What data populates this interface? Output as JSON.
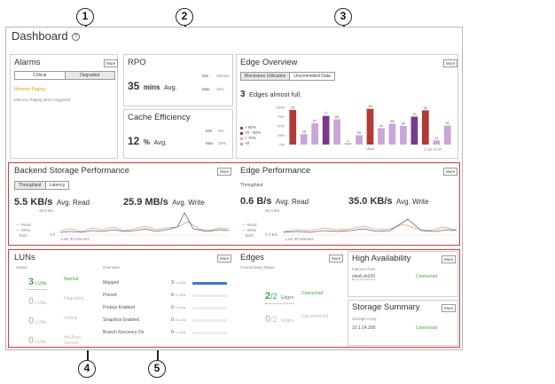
{
  "callouts": [
    "1",
    "2",
    "3",
    "4",
    "5"
  ],
  "dashboard": {
    "title": "Dashboard",
    "help_icon": "?"
  },
  "alarms": {
    "title": "Alarms",
    "more": "More",
    "tabs": [
      "Critical",
      "Degraded"
    ],
    "active_tab": "Degraded",
    "item_title": "Memory Paging",
    "item_desc": "Memory Paging alarm triggered.",
    "item_color": "#e89a1c"
  },
  "rpo": {
    "title": "RPO",
    "value": "35",
    "unit": "mins",
    "suffix": "Avg.",
    "min_label": "Min",
    "min_value": "20mins",
    "max_label": "Max",
    "max_value": "1hrs"
  },
  "cache": {
    "title": "Cache Efficiency",
    "value": "12",
    "unit": "%",
    "suffix": "Avg.",
    "min_label": "Min",
    "min_value": "0%",
    "max_label": "Max",
    "max_value": "25%"
  },
  "edge_overview": {
    "title": "Edge Overview",
    "more": "More",
    "tabs": [
      "Blockstore Utilization",
      "Uncommitted Data"
    ],
    "active_tab": "Blockstore Utilization",
    "count": "3",
    "count_text": "Edges almost full.",
    "legend": [
      {
        "label": "> 90%",
        "color": "#b23a32"
      },
      {
        "label": "70 - 90%",
        "color": "#7a3a8c"
      },
      {
        "label": "< 70%",
        "color": "#c9a6d6"
      },
      {
        "label": "All",
        "color": "#aaaaaa"
      }
    ],
    "pager": "1-15 of 37",
    "axis_name": "10pct",
    "colors": {
      "high": "#b23a32",
      "mid": "#7a3a8c",
      "low": "#c9a6d6"
    }
  },
  "chart_data": {
    "type": "bar",
    "values": [
      93,
      28,
      57,
      77,
      68,
      4,
      25,
      96,
      44,
      56,
      50,
      75,
      92,
      11,
      51
    ],
    "levels": [
      "high",
      "low",
      "low",
      "mid",
      "low",
      "low",
      "low",
      "high",
      "low",
      "low",
      "low",
      "mid",
      "high",
      "low",
      "low"
    ],
    "yticks": [
      "100%",
      "75%",
      "50%",
      "25%",
      "0%"
    ],
    "ylim": [
      0,
      100
    ]
  },
  "backend": {
    "title": "Backend Storage Performance",
    "more": "More",
    "tabs": [
      "Throughput",
      "Latency"
    ],
    "active_tab": "Throughput",
    "read_value": "5.5 KB/s",
    "read_label": "Avg. Read",
    "write_value": "25.9 MB/s",
    "write_label": "Avg. Write",
    "y_max": "48.8 B/s",
    "y_zero": "0.0",
    "x_label": "Last 30 Minutes",
    "legend": [
      "Read",
      "Write",
      "Both"
    ],
    "colors": {
      "read": "#e7a25a",
      "write": "#6b5b9e"
    }
  },
  "edge_perf": {
    "title": "Edge Performance",
    "more": "More",
    "subtitle": "Throughput",
    "read_value": "0.6 B/s",
    "read_label": "Avg. Read",
    "write_value": "35.0 KB/s",
    "write_label": "Avg. Write",
    "y_max": "60.0 B/s",
    "y_zero": "0.0 B/s",
    "x_label": "Last 30 Minutes",
    "legend": [
      "Read",
      "Write",
      "Both"
    ]
  },
  "luns": {
    "title": "LUNs",
    "more": "More",
    "status_label": "Status",
    "overview_label": "Overview",
    "statuses": [
      {
        "count": "3",
        "unit": "LUNs",
        "label": "Normal",
        "active": true
      },
      {
        "count": "0",
        "unit": "LUNs",
        "label": "Degraded",
        "active": false
      },
      {
        "count": "0",
        "unit": "LUNs",
        "label": "Critical",
        "active": false
      },
      {
        "count": "0",
        "unit": "LUNs",
        "label": "HA-Peer Service",
        "active": false
      }
    ],
    "overview": [
      {
        "label": "Mapped",
        "value": "3",
        "total": "/ 3 LUNs",
        "fraction": 1.0
      },
      {
        "label": "Pinned",
        "value": "0",
        "total": "/ 3 LUNs",
        "fraction": 0
      },
      {
        "label": "Prepop Enabled",
        "value": "0",
        "total": "/ 3 LUNs",
        "fraction": 0
      },
      {
        "label": "Snapshot Enabled",
        "value": "0",
        "total": "/ 3 LUNs",
        "fraction": 0
      },
      {
        "label": "Branch Recovery On",
        "value": "0",
        "total": "/ 3 LUNs",
        "fraction": 0
      }
    ]
  },
  "edges": {
    "title": "Edges",
    "more": "More",
    "status_label": "Connectivity Status",
    "connected_count": "2",
    "connected_total": "/2",
    "connected_unit": "Edges",
    "connected_label": "Connected",
    "disconnected_count": "0",
    "disconnected_total": "/2",
    "disconnected_unit": "Edges",
    "disconnected_label": "Disconnected"
  },
  "ha": {
    "title": "High Availability",
    "more": "More",
    "peer_label": "Failover Peer",
    "peer_value": "chief-sh100",
    "status": "Connected"
  },
  "storage": {
    "title": "Storage Summary",
    "more": "More",
    "array_label": "Storage Array",
    "array_value": "10.1.14.200",
    "status": "Connected"
  }
}
